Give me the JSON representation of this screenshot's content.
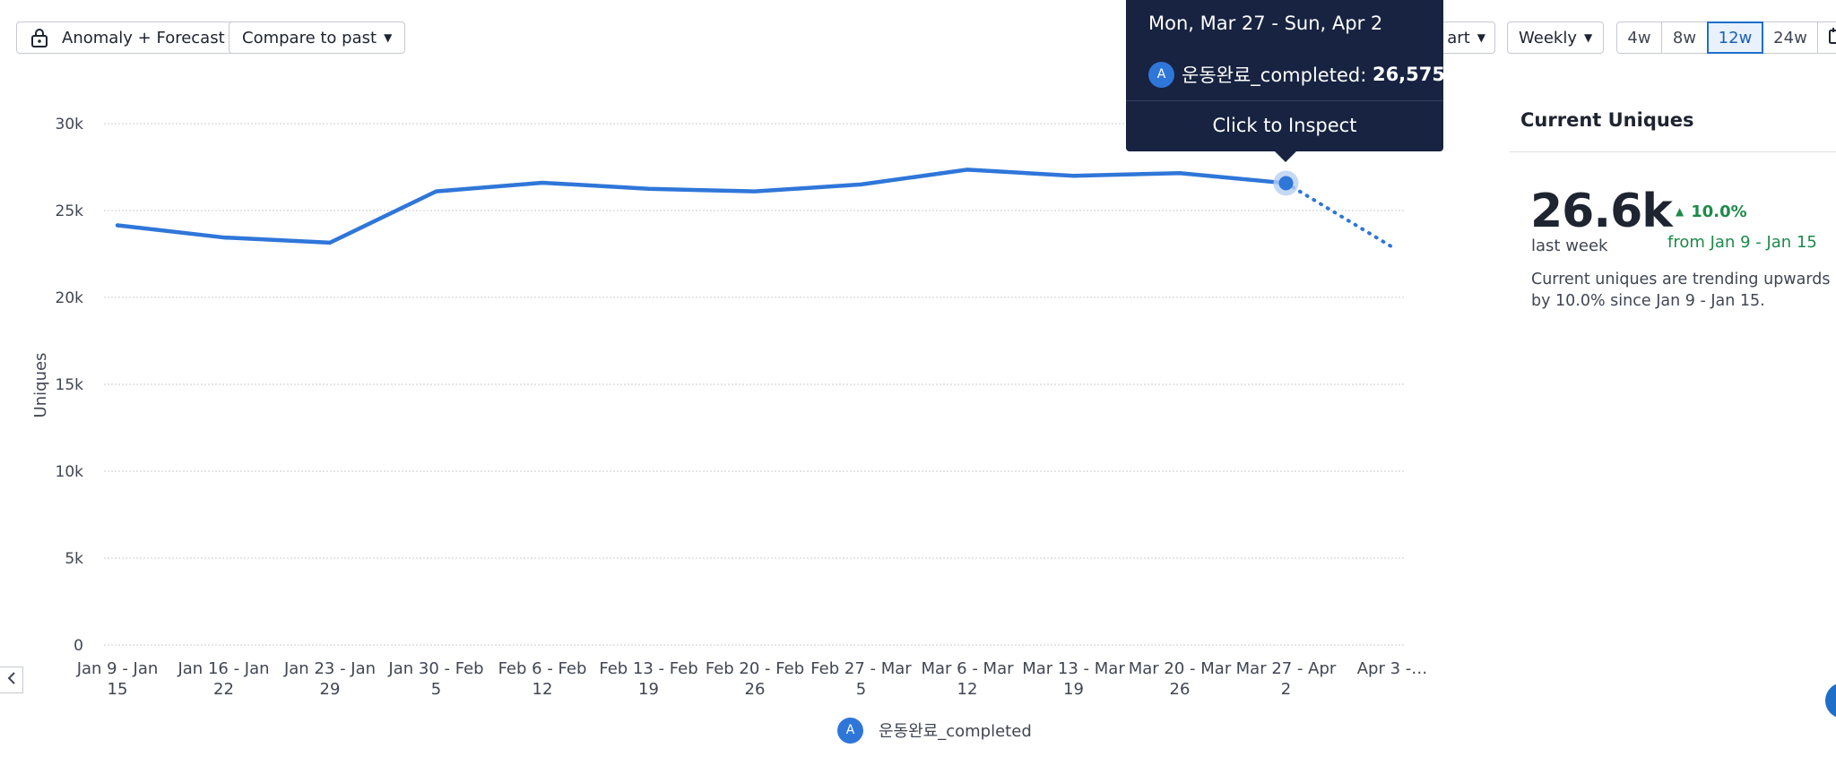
{
  "toolbar": {
    "anomaly_label": "Anomaly + Forecast",
    "compare_label": "Compare to past",
    "chart_type_label": "art",
    "interval_label": "Weekly",
    "ranges": [
      "4w",
      "8w",
      "12w",
      "24w"
    ],
    "active_range": "12w"
  },
  "tooltip": {
    "date_range": "Mon, Mar 27 - Sun, Apr 2",
    "series_badge": "A",
    "series_label": "운동완료_completed: ",
    "value": "26,575",
    "action": "Click to Inspect"
  },
  "side_panel": {
    "title": "Current Uniques",
    "big_value": "26.6k",
    "period_label": "last week",
    "change": "10.0%",
    "change_from": "from Jan 9 - Jan 15",
    "description": "Current uniques are trending upwards by 10.0% since Jan 9 - Jan 15."
  },
  "legend": {
    "badge": "A",
    "label": "운동완료_completed"
  },
  "colors": {
    "series": "#2f76d9",
    "tooltip_bg": "#172341",
    "positive": "#1d8a4a"
  },
  "chart_data": {
    "type": "line",
    "title": "",
    "xlabel": "",
    "ylabel": "Uniques",
    "ylim": [
      0,
      30000
    ],
    "yticks": [
      0,
      5000,
      10000,
      15000,
      20000,
      25000,
      30000
    ],
    "ytick_labels": [
      "0",
      "5k",
      "10k",
      "15k",
      "20k",
      "25k",
      "30k"
    ],
    "grid": true,
    "categories": [
      [
        "Jan 9 - Jan",
        "15"
      ],
      [
        "Jan 16 - Jan",
        "22"
      ],
      [
        "Jan 23 - Jan",
        "29"
      ],
      [
        "Jan 30 - Feb",
        "5"
      ],
      [
        "Feb 6 - Feb",
        "12"
      ],
      [
        "Feb 13 - Feb",
        "19"
      ],
      [
        "Feb 20 - Feb",
        "26"
      ],
      [
        "Feb 27 - Mar",
        "5"
      ],
      [
        "Mar 6 - Mar",
        "12"
      ],
      [
        "Mar 13 - Mar",
        "19"
      ],
      [
        "Mar 20 - Mar",
        "26"
      ],
      [
        "Mar 27 - Apr",
        "2"
      ],
      [
        "Apr 3 -…",
        ""
      ]
    ],
    "series": [
      {
        "name": "운동완료_completed",
        "values": [
          24150,
          23450,
          23150,
          26100,
          26600,
          26250,
          26100,
          26500,
          27350,
          27000,
          27150,
          26575,
          null
        ],
        "forecast": [
          null,
          null,
          null,
          null,
          null,
          null,
          null,
          null,
          null,
          null,
          null,
          26575,
          22900
        ]
      }
    ],
    "highlight_index": 11
  }
}
